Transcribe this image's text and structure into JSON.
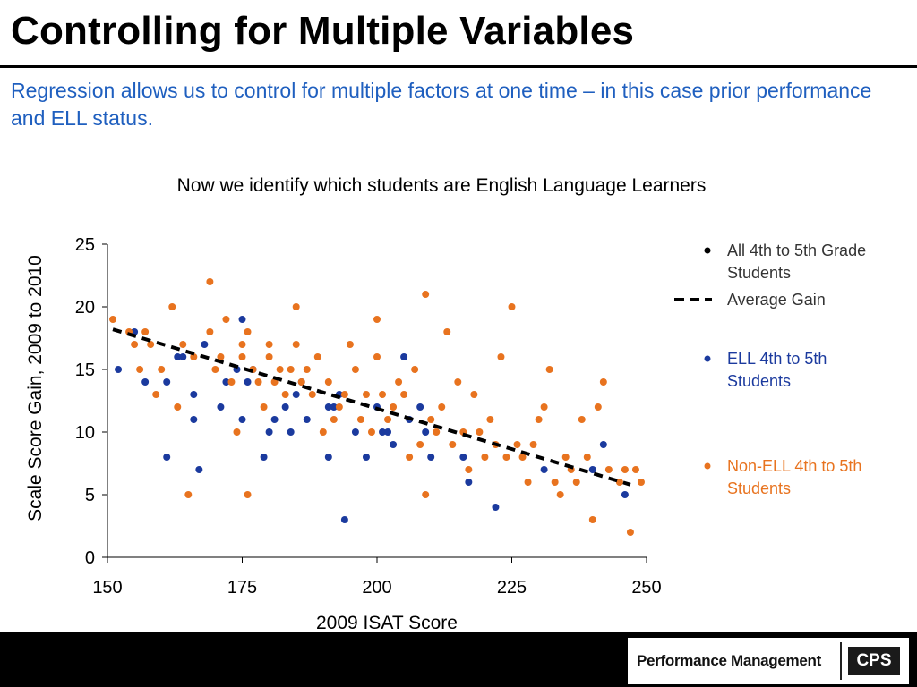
{
  "slide": {
    "title": "Controlling for Multiple Variables",
    "subtitle": "Regression allows us to control for multiple factors at one time – in this case prior performance and ELL status."
  },
  "footer": {
    "logo_text": "Performance Management",
    "logo_badge": "CPS"
  },
  "colors": {
    "title": "#000000",
    "subtitle": "#1f5fbf",
    "ell": "#1b3a9e",
    "non_ell": "#e8731f",
    "all_students": "#000000",
    "footer_bg": "#000000"
  },
  "chart_data": {
    "type": "scatter",
    "title": "Now we identify which students are English Language Learners",
    "xlabel": "2009 ISAT Score",
    "ylabel": "Scale Score Gain, 2009 to 2010",
    "xlim": [
      150,
      250
    ],
    "ylim": [
      0,
      25
    ],
    "xticks": [
      150,
      175,
      200,
      225,
      250
    ],
    "yticks": [
      0,
      5,
      10,
      15,
      20,
      25
    ],
    "grid": false,
    "legend_position": "right",
    "legend": [
      {
        "label": "All 4th to 5th Grade Students",
        "marker": "dot",
        "color": "#000000"
      },
      {
        "label": "Average Gain",
        "marker": "dashed-line",
        "color": "#000000"
      },
      {
        "label": "ELL 4th to 5th Students",
        "marker": "dot",
        "color": "#1b3a9e"
      },
      {
        "label": "Non-ELL 4th to 5th Students",
        "marker": "dot",
        "color": "#e8731f"
      }
    ],
    "trend_line": {
      "x": [
        151,
        247
      ],
      "y": [
        18.2,
        5.8
      ]
    },
    "series": [
      {
        "name": "ELL 4th to 5th Students",
        "color": "#1b3a9e",
        "points": [
          [
            152,
            15
          ],
          [
            155,
            18
          ],
          [
            157,
            14
          ],
          [
            161,
            8
          ],
          [
            161,
            14
          ],
          [
            163,
            16
          ],
          [
            164,
            16
          ],
          [
            166,
            11
          ],
          [
            166,
            13
          ],
          [
            167,
            7
          ],
          [
            168,
            17
          ],
          [
            171,
            12
          ],
          [
            172,
            14
          ],
          [
            174,
            15
          ],
          [
            175,
            11
          ],
          [
            175,
            19
          ],
          [
            176,
            14
          ],
          [
            177,
            15
          ],
          [
            179,
            8
          ],
          [
            180,
            10
          ],
          [
            181,
            11
          ],
          [
            183,
            12
          ],
          [
            184,
            10
          ],
          [
            185,
            13
          ],
          [
            186,
            14
          ],
          [
            187,
            11
          ],
          [
            191,
            8
          ],
          [
            191,
            12
          ],
          [
            192,
            12
          ],
          [
            193,
            13
          ],
          [
            194,
            3
          ],
          [
            196,
            10
          ],
          [
            198,
            8
          ],
          [
            200,
            12
          ],
          [
            201,
            10
          ],
          [
            202,
            10
          ],
          [
            203,
            9
          ],
          [
            205,
            16
          ],
          [
            206,
            11
          ],
          [
            208,
            12
          ],
          [
            209,
            10
          ],
          [
            210,
            8
          ],
          [
            216,
            8
          ],
          [
            217,
            6
          ],
          [
            222,
            4
          ],
          [
            231,
            7
          ],
          [
            240,
            7
          ],
          [
            242,
            9
          ],
          [
            246,
            5
          ]
        ]
      },
      {
        "name": "Non-ELL 4th to 5th Students",
        "color": "#e8731f",
        "points": [
          [
            151,
            19
          ],
          [
            154,
            18
          ],
          [
            155,
            17
          ],
          [
            156,
            15
          ],
          [
            157,
            18
          ],
          [
            158,
            17
          ],
          [
            159,
            13
          ],
          [
            160,
            15
          ],
          [
            162,
            20
          ],
          [
            163,
            12
          ],
          [
            164,
            17
          ],
          [
            165,
            5
          ],
          [
            166,
            16
          ],
          [
            169,
            22
          ],
          [
            169,
            18
          ],
          [
            170,
            15
          ],
          [
            171,
            16
          ],
          [
            172,
            19
          ],
          [
            173,
            14
          ],
          [
            174,
            10
          ],
          [
            175,
            16
          ],
          [
            175,
            17
          ],
          [
            176,
            18
          ],
          [
            176,
            5
          ],
          [
            177,
            15
          ],
          [
            178,
            14
          ],
          [
            179,
            12
          ],
          [
            180,
            16
          ],
          [
            180,
            17
          ],
          [
            181,
            14
          ],
          [
            182,
            15
          ],
          [
            183,
            13
          ],
          [
            184,
            15
          ],
          [
            185,
            20
          ],
          [
            185,
            17
          ],
          [
            186,
            14
          ],
          [
            187,
            15
          ],
          [
            188,
            13
          ],
          [
            189,
            16
          ],
          [
            190,
            10
          ],
          [
            191,
            14
          ],
          [
            192,
            11
          ],
          [
            193,
            12
          ],
          [
            194,
            13
          ],
          [
            195,
            17
          ],
          [
            196,
            15
          ],
          [
            197,
            11
          ],
          [
            198,
            13
          ],
          [
            199,
            10
          ],
          [
            200,
            19
          ],
          [
            200,
            16
          ],
          [
            201,
            13
          ],
          [
            202,
            11
          ],
          [
            203,
            12
          ],
          [
            204,
            14
          ],
          [
            205,
            13
          ],
          [
            206,
            8
          ],
          [
            207,
            15
          ],
          [
            208,
            9
          ],
          [
            209,
            21
          ],
          [
            209,
            5
          ],
          [
            210,
            11
          ],
          [
            211,
            10
          ],
          [
            212,
            12
          ],
          [
            213,
            18
          ],
          [
            214,
            9
          ],
          [
            215,
            14
          ],
          [
            216,
            10
          ],
          [
            217,
            7
          ],
          [
            218,
            13
          ],
          [
            219,
            10
          ],
          [
            220,
            8
          ],
          [
            221,
            11
          ],
          [
            222,
            9
          ],
          [
            223,
            16
          ],
          [
            224,
            8
          ],
          [
            225,
            20
          ],
          [
            226,
            9
          ],
          [
            227,
            8
          ],
          [
            228,
            6
          ],
          [
            229,
            9
          ],
          [
            230,
            11
          ],
          [
            231,
            12
          ],
          [
            232,
            15
          ],
          [
            233,
            6
          ],
          [
            234,
            5
          ],
          [
            235,
            8
          ],
          [
            236,
            7
          ],
          [
            237,
            6
          ],
          [
            238,
            11
          ],
          [
            239,
            8
          ],
          [
            240,
            3
          ],
          [
            241,
            12
          ],
          [
            242,
            14
          ],
          [
            243,
            7
          ],
          [
            245,
            6
          ],
          [
            246,
            7
          ],
          [
            247,
            2
          ],
          [
            248,
            7
          ],
          [
            249,
            6
          ]
        ]
      }
    ]
  }
}
